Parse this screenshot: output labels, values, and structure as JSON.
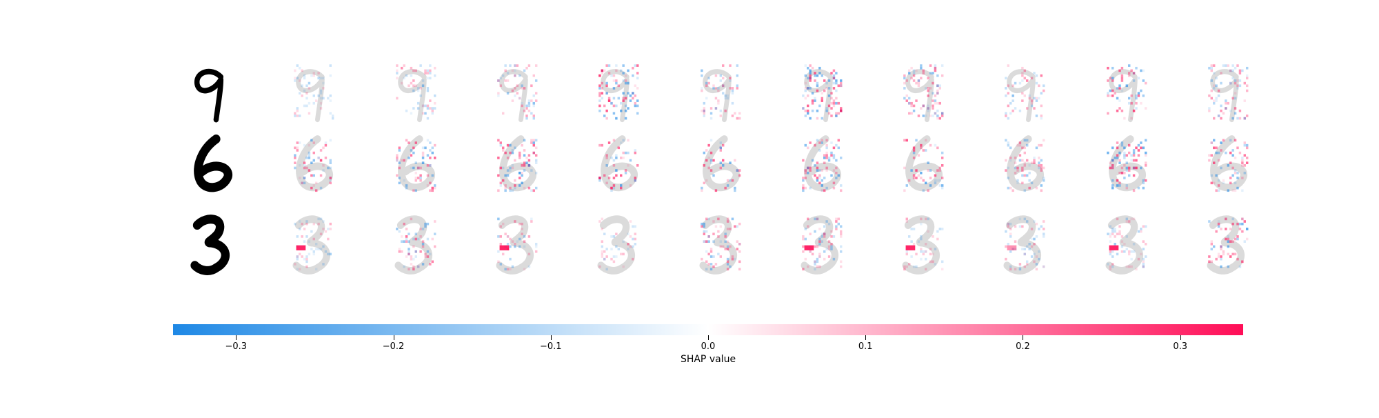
{
  "chart_data": {
    "type": "heatmap",
    "description_kind": "image-grid-with-colorbar",
    "rows": [
      {
        "digit": "9",
        "explanation_count": 10
      },
      {
        "digit": "6",
        "explanation_count": 10
      },
      {
        "digit": "3",
        "explanation_count": 10
      }
    ],
    "colorbar": {
      "label": "SHAP value",
      "range": [
        -0.34,
        0.34
      ],
      "ticks": [
        -0.3,
        -0.2,
        -0.1,
        0.0,
        0.1,
        0.2,
        0.3
      ],
      "tick_labels": [
        "−0.3",
        "−0.2",
        "−0.1",
        "0.0",
        "0.1",
        "0.2",
        "0.3"
      ],
      "colors": {
        "negative": "#1e88e5",
        "zero": "#ffffff",
        "positive": "#ff0d57"
      }
    }
  }
}
